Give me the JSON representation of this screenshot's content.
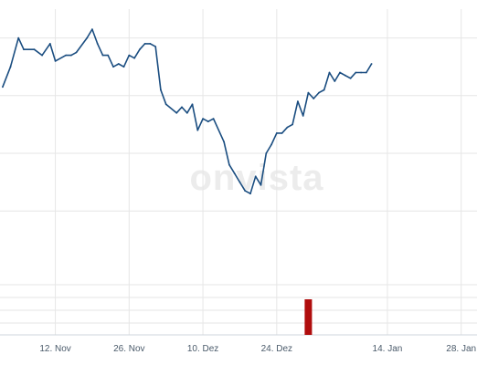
{
  "watermark": "onvista",
  "chart_data": [
    {
      "type": "line",
      "title": "",
      "xlabel": "",
      "ylabel": "",
      "grid": true,
      "x_ticks": [
        {
          "label": "12. Nov",
          "day": 12
        },
        {
          "label": "26. Nov",
          "day": 26
        },
        {
          "label": "10. Dez",
          "day": 40
        },
        {
          "label": "24. Dez",
          "day": 54
        },
        {
          "label": "14. Jan",
          "day": 75
        },
        {
          "label": "28. Jan",
          "day": 89
        }
      ],
      "xlim": [
        1.5,
        92
      ],
      "ylim": [
        0,
        100
      ],
      "y_gridlines": [
        90,
        70,
        50,
        30
      ],
      "line_color": "#1a4d80",
      "series": [
        {
          "points": [
            [
              2,
              73
            ],
            [
              3.5,
              80
            ],
            [
              5,
              90
            ],
            [
              6,
              86
            ],
            [
              8,
              86
            ],
            [
              9.5,
              84
            ],
            [
              11,
              88
            ],
            [
              12,
              82
            ],
            [
              14,
              84
            ],
            [
              15,
              84
            ],
            [
              16,
              85
            ],
            [
              18,
              90
            ],
            [
              19,
              93
            ],
            [
              20,
              88
            ],
            [
              21,
              84
            ],
            [
              22,
              84
            ],
            [
              23,
              80
            ],
            [
              24,
              81
            ],
            [
              25,
              80
            ],
            [
              26,
              84
            ],
            [
              27,
              83
            ],
            [
              28,
              86
            ],
            [
              29,
              88
            ],
            [
              30,
              88
            ],
            [
              31,
              87
            ],
            [
              32,
              72
            ],
            [
              33,
              67
            ],
            [
              35,
              64
            ],
            [
              36,
              66
            ],
            [
              37,
              64
            ],
            [
              38,
              67
            ],
            [
              39,
              58
            ],
            [
              40,
              62
            ],
            [
              41,
              61
            ],
            [
              42,
              62
            ],
            [
              44,
              54
            ],
            [
              45,
              46
            ],
            [
              46,
              43
            ],
            [
              47,
              40
            ],
            [
              48,
              37
            ],
            [
              49,
              36
            ],
            [
              50,
              42
            ],
            [
              51,
              39
            ],
            [
              52,
              50
            ],
            [
              53,
              53
            ],
            [
              54,
              57
            ],
            [
              55,
              57
            ],
            [
              56,
              59
            ],
            [
              57,
              60
            ],
            [
              58,
              68
            ],
            [
              59,
              63
            ],
            [
              60,
              71
            ],
            [
              61,
              69
            ],
            [
              62,
              71
            ],
            [
              63,
              72
            ],
            [
              64,
              78
            ],
            [
              65,
              75
            ],
            [
              66,
              78
            ],
            [
              67,
              77
            ],
            [
              68,
              76
            ],
            [
              69,
              78
            ],
            [
              70,
              78
            ],
            [
              71,
              78
            ],
            [
              72,
              81
            ]
          ]
        }
      ],
      "volume": {
        "color": "#b00d0d",
        "bars": [
          {
            "day": 60,
            "value": 1
          }
        ]
      }
    }
  ]
}
